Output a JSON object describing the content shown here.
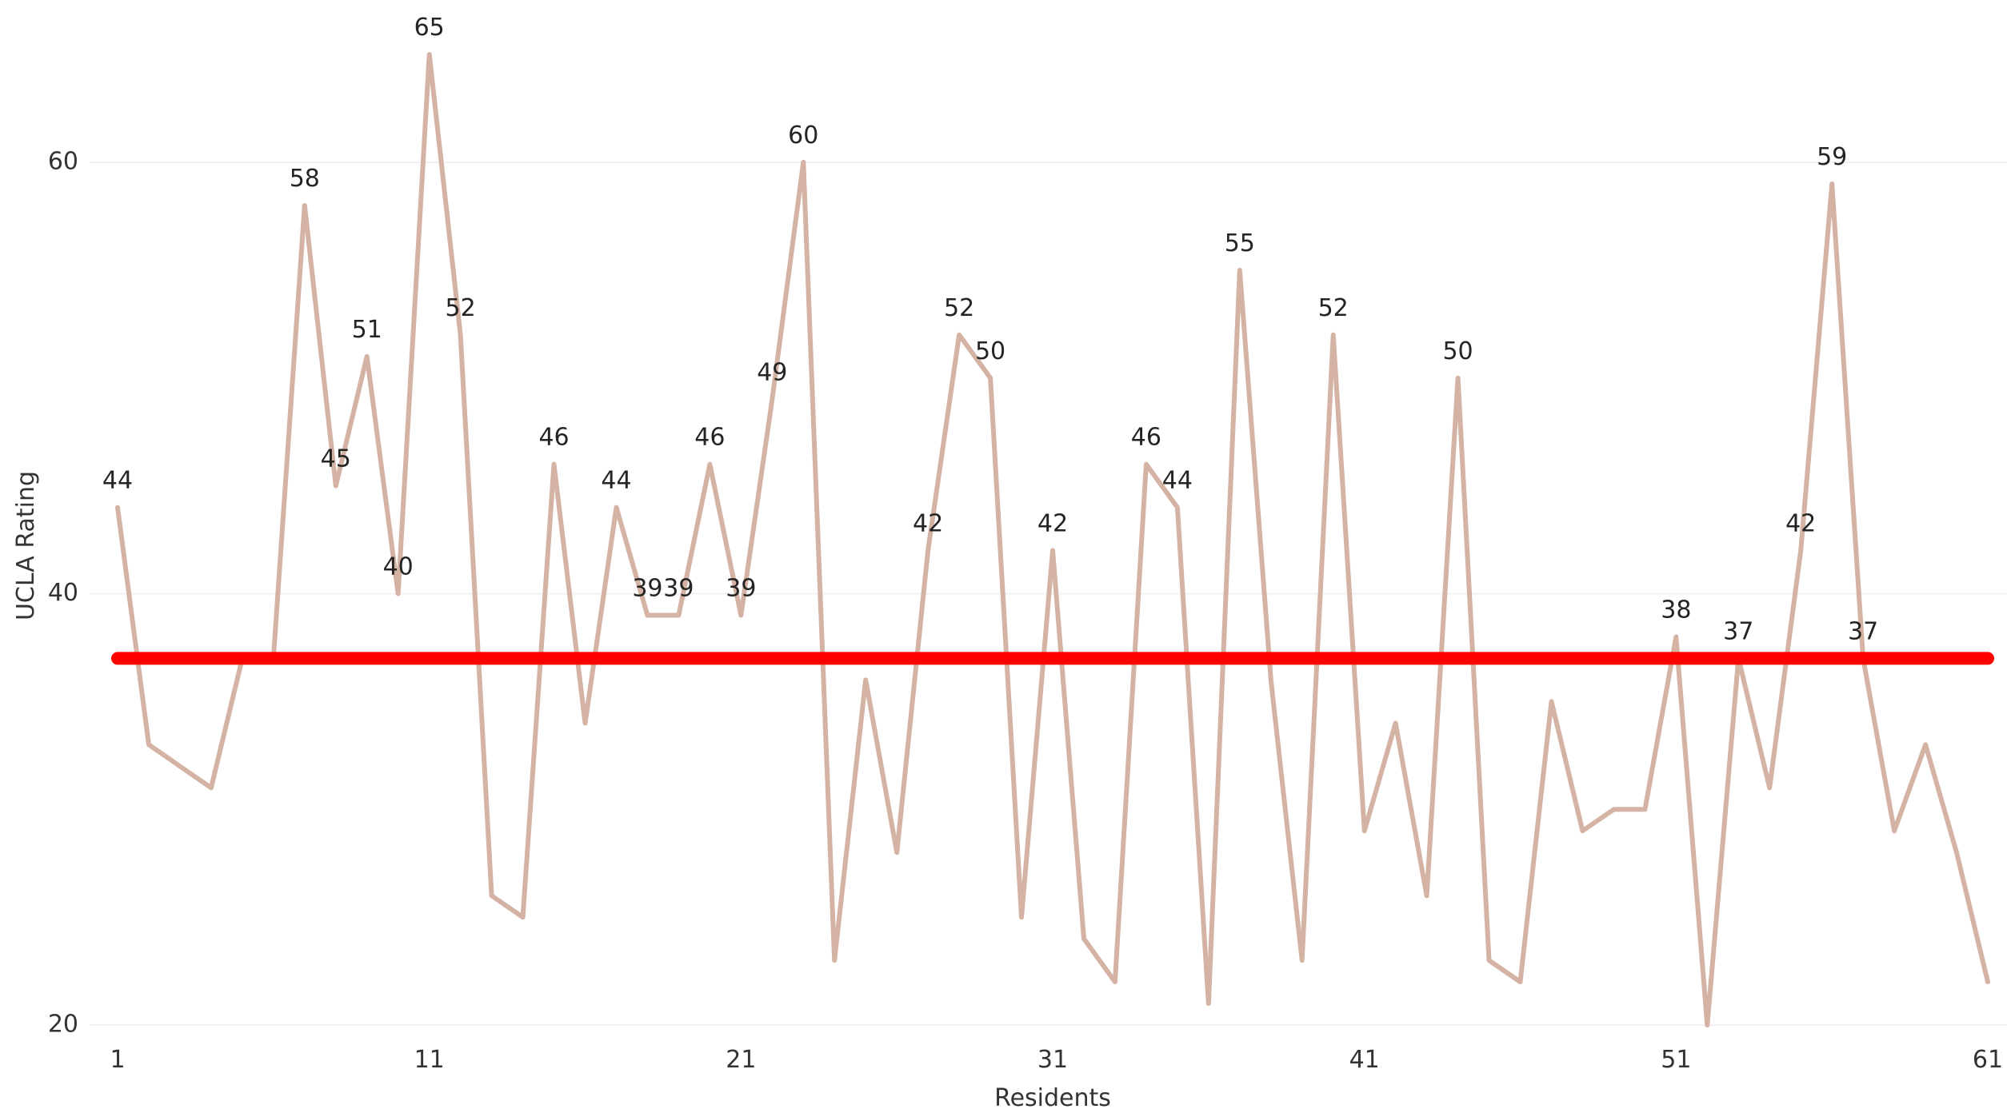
{
  "chart_data": {
    "type": "line",
    "title": "",
    "xlabel": "Residents",
    "ylabel": "UCLA Rating",
    "x": [
      1,
      2,
      3,
      4,
      5,
      6,
      7,
      8,
      9,
      10,
      11,
      12,
      13,
      14,
      15,
      16,
      17,
      18,
      19,
      20,
      21,
      22,
      23,
      24,
      25,
      26,
      27,
      28,
      29,
      30,
      31,
      32,
      33,
      34,
      35,
      36,
      37,
      38,
      39,
      40,
      41,
      42,
      43,
      44,
      45,
      46,
      47,
      48,
      49,
      50,
      51,
      52,
      53,
      54,
      55,
      56,
      57,
      58,
      59,
      60,
      61
    ],
    "series": [
      {
        "values": [
          44,
          33,
          32,
          31,
          37,
          37,
          58,
          45,
          51,
          40,
          65,
          52,
          26,
          25,
          46,
          34,
          44,
          39,
          39,
          46,
          39,
          49,
          60,
          23,
          36,
          28,
          42,
          52,
          50,
          25,
          42,
          24,
          22,
          46,
          44,
          21,
          55,
          36,
          23,
          52,
          29,
          34,
          26,
          50,
          23,
          22,
          35,
          29,
          30,
          30,
          38,
          20,
          37,
          31,
          42,
          59,
          37,
          29,
          33,
          28,
          22
        ],
        "color": "#D4B3A4",
        "labeled_points": [
          1,
          7,
          8,
          9,
          10,
          11,
          12,
          15,
          17,
          18,
          19,
          20,
          21,
          22,
          23,
          27,
          28,
          29,
          31,
          34,
          35,
          37,
          40,
          44,
          51,
          53,
          55,
          56,
          57
        ]
      }
    ],
    "reference_line": {
      "value": 37,
      "color": "#FF0000",
      "label": "37"
    },
    "x_ticks": [
      1,
      11,
      21,
      31,
      41,
      51,
      61
    ],
    "y_ticks": [
      20,
      40,
      60
    ],
    "xlim": [
      1,
      61
    ],
    "ylim": [
      20,
      65
    ],
    "grid": "horizontal",
    "legend": "none"
  }
}
